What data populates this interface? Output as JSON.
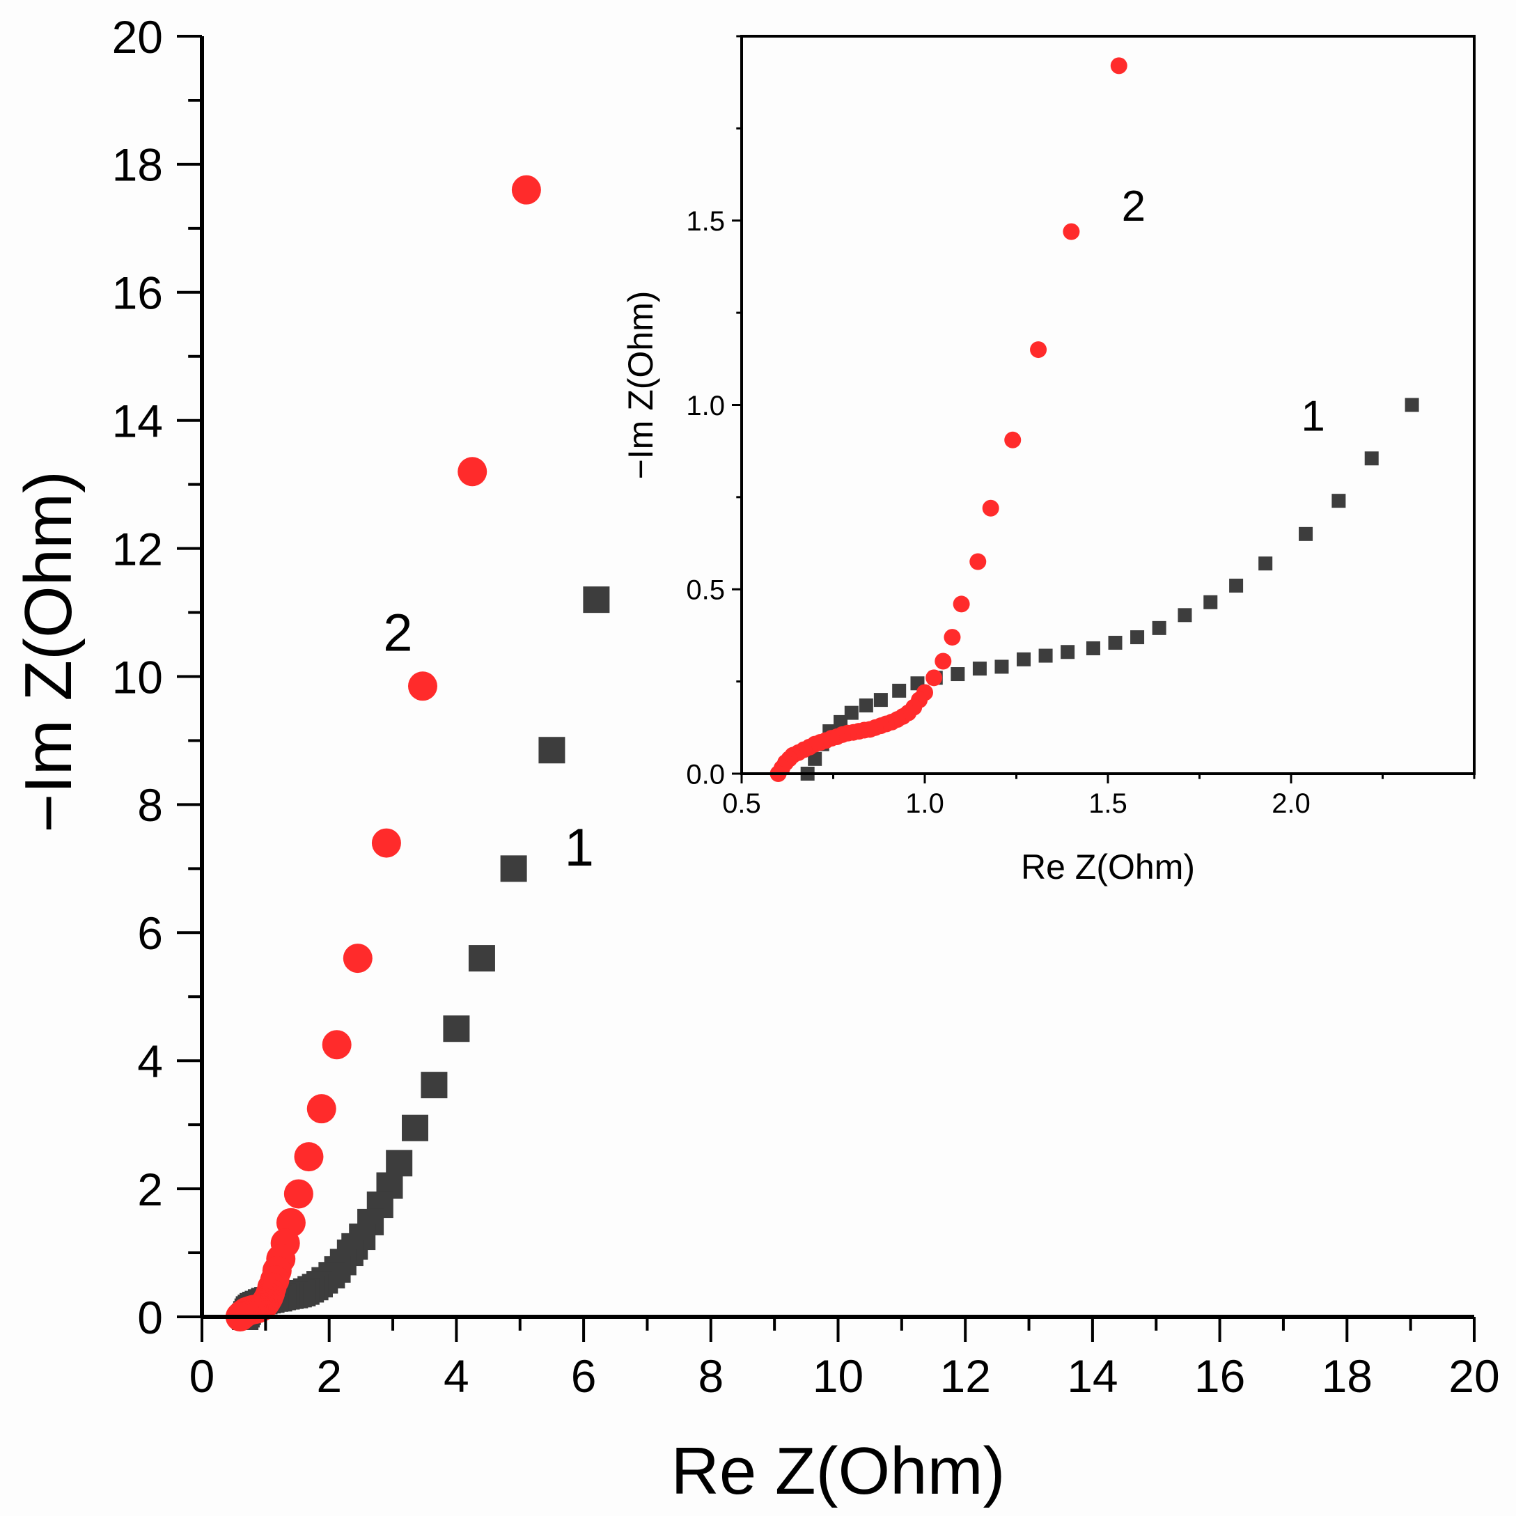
{
  "chart_data": [
    {
      "type": "scatter",
      "role": "main",
      "xlabel": "Re Z(Ohm)",
      "ylabel": "−Im Z(Ohm)",
      "xlim": [
        0,
        20
      ],
      "ylim": [
        0,
        20
      ],
      "xticks": [
        "0",
        "2",
        "4",
        "6",
        "8",
        "10",
        "12",
        "14",
        "16",
        "18",
        "20"
      ],
      "yticks": [
        "0",
        "2",
        "4",
        "6",
        "8",
        "10",
        "12",
        "14",
        "16",
        "18",
        "20"
      ],
      "grid": false,
      "annotations": [
        {
          "text": "2",
          "x": 3.08,
          "y": 10.4
        },
        {
          "text": "1",
          "x": 5.93,
          "y": 7.05
        }
      ],
      "series": [
        {
          "name": "1",
          "marker": "square",
          "color": "#3d3d3d",
          "x": [
            6.2,
            5.5,
            4.9,
            4.4,
            4.0,
            3.65,
            3.35,
            3.1,
            2.95,
            2.8,
            2.65,
            2.52,
            2.4,
            2.33,
            2.22,
            2.13,
            2.04,
            1.93,
            1.85,
            1.78,
            1.71,
            1.64,
            1.58,
            1.52,
            1.46,
            1.39,
            1.33,
            1.27,
            1.21,
            1.15,
            1.09,
            1.03,
            0.98,
            0.93,
            0.88,
            0.84,
            0.8,
            0.77,
            0.74,
            0.72,
            0.7,
            0.68
          ],
          "y": [
            11.2,
            8.85,
            7.0,
            5.6,
            4.5,
            3.62,
            2.95,
            2.4,
            2.05,
            1.75,
            1.48,
            1.25,
            1.1,
            1.0,
            0.855,
            0.74,
            0.65,
            0.57,
            0.51,
            0.465,
            0.43,
            0.395,
            0.37,
            0.355,
            0.34,
            0.33,
            0.32,
            0.31,
            0.29,
            0.285,
            0.27,
            0.26,
            0.245,
            0.225,
            0.2,
            0.185,
            0.165,
            0.14,
            0.115,
            0.08,
            0.04,
            0.0
          ]
        },
        {
          "name": "2",
          "marker": "circle",
          "color": "#ff2b2b",
          "x": [
            5.1,
            4.25,
            3.47,
            2.9,
            2.45,
            2.12,
            1.88,
            1.68,
            1.52,
            1.4,
            1.31,
            1.24,
            1.18,
            1.145,
            1.1,
            1.075,
            1.05,
            1.025,
            1.0,
            0.97,
            0.94,
            0.91,
            0.88,
            0.85,
            0.82,
            0.79,
            0.76,
            0.73,
            0.7,
            0.68,
            0.66,
            0.64,
            0.62,
            0.6
          ],
          "y": [
            17.6,
            13.2,
            9.85,
            7.4,
            5.6,
            4.25,
            3.25,
            2.5,
            1.92,
            1.47,
            1.15,
            0.905,
            0.72,
            0.575,
            0.46,
            0.37,
            0.305,
            0.26,
            0.22,
            0.18,
            0.155,
            0.14,
            0.13,
            0.12,
            0.115,
            0.11,
            0.1,
            0.09,
            0.08,
            0.065,
            0.05,
            0.035,
            0.02,
            0.0
          ]
        }
      ]
    },
    {
      "type": "scatter",
      "role": "inset",
      "xlabel": "Re Z(Ohm)",
      "ylabel": "−Im Z(Ohm)",
      "xlim": [
        0.5,
        2.5
      ],
      "ylim": [
        0,
        2.0
      ],
      "xticks": [
        "0.5",
        "1.0",
        "1.5",
        "2.0"
      ],
      "yticks": [
        "0.0",
        "0.5",
        "1.0",
        "1.5"
      ],
      "grid": false,
      "annotations": [
        {
          "text": "2",
          "x": 1.57,
          "y": 1.5
        },
        {
          "text": "1",
          "x": 2.06,
          "y": 0.93
        }
      ],
      "series": [
        {
          "name": "1",
          "marker": "square",
          "color": "#3d3d3d",
          "x": [
            2.33,
            2.22,
            2.13,
            2.04,
            1.93,
            1.85,
            1.78,
            1.71,
            1.64,
            1.58,
            1.52,
            1.46,
            1.39,
            1.33,
            1.27,
            1.21,
            1.15,
            1.09,
            1.03,
            0.98,
            0.93,
            0.88,
            0.84,
            0.8,
            0.77,
            0.74,
            0.72,
            0.7,
            0.68
          ],
          "y": [
            1.0,
            0.855,
            0.74,
            0.65,
            0.57,
            0.51,
            0.465,
            0.43,
            0.395,
            0.37,
            0.355,
            0.34,
            0.33,
            0.32,
            0.31,
            0.29,
            0.285,
            0.27,
            0.26,
            0.245,
            0.225,
            0.2,
            0.185,
            0.165,
            0.14,
            0.115,
            0.08,
            0.04,
            0.0
          ]
        },
        {
          "name": "2",
          "marker": "circle",
          "color": "#ff2b2b",
          "x": [
            1.53,
            1.4,
            1.31,
            1.24,
            1.18,
            1.145,
            1.1,
            1.075,
            1.05,
            1.025,
            1.0,
            0.985,
            0.97,
            0.955,
            0.94,
            0.925,
            0.91,
            0.895,
            0.88,
            0.865,
            0.85,
            0.835,
            0.82,
            0.805,
            0.79,
            0.775,
            0.76,
            0.745,
            0.73,
            0.715,
            0.7,
            0.685,
            0.67,
            0.655,
            0.64,
            0.63,
            0.62,
            0.61,
            0.6
          ],
          "y": [
            1.92,
            1.47,
            1.15,
            0.905,
            0.72,
            0.575,
            0.46,
            0.37,
            0.305,
            0.26,
            0.22,
            0.2,
            0.18,
            0.165,
            0.155,
            0.147,
            0.14,
            0.135,
            0.13,
            0.125,
            0.12,
            0.118,
            0.115,
            0.112,
            0.11,
            0.106,
            0.1,
            0.096,
            0.09,
            0.085,
            0.08,
            0.072,
            0.065,
            0.057,
            0.05,
            0.04,
            0.03,
            0.015,
            0.0
          ]
        }
      ]
    }
  ]
}
